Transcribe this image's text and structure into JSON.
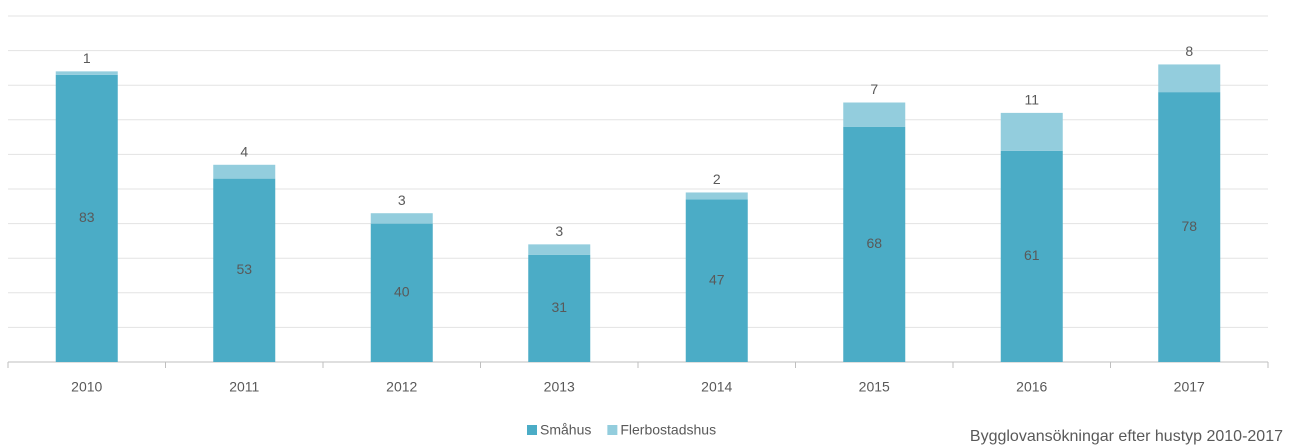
{
  "chart_data": {
    "type": "stacked_bar",
    "caption": "Bygglovansökningar efter hustyp 2010-2017",
    "categories": [
      "2010",
      "2011",
      "2012",
      "2013",
      "2014",
      "2015",
      "2016",
      "2017"
    ],
    "series": [
      {
        "name": "Småhus",
        "color": "#4bacc6",
        "values": [
          83,
          53,
          40,
          31,
          47,
          68,
          61,
          78
        ]
      },
      {
        "name": "Flerbostadshus",
        "color": "#93cddd",
        "values": [
          1,
          4,
          3,
          3,
          2,
          7,
          11,
          8
        ]
      }
    ],
    "ylim": [
      0,
      100
    ],
    "yticks": [
      0,
      10,
      20,
      30,
      40,
      50,
      60,
      70,
      80,
      90,
      100
    ],
    "grid": true,
    "legend": "bottom"
  }
}
